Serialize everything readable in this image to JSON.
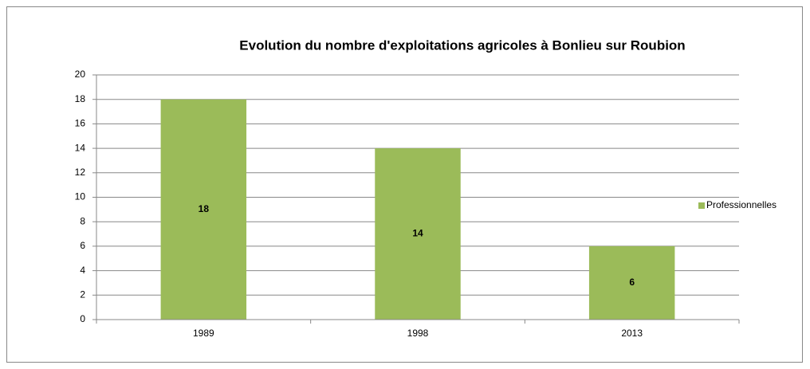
{
  "chart_data": {
    "type": "bar",
    "title": "Evolution du nombre d'exploitations agricoles à Bonlieu sur Roubion",
    "categories": [
      "1989",
      "1998",
      "2013"
    ],
    "series": [
      {
        "name": "Professionnelles",
        "color": "#9bbb59",
        "values": [
          18,
          14,
          6
        ]
      }
    ],
    "ylim": [
      0,
      20
    ],
    "yticks": [
      0,
      2,
      4,
      6,
      8,
      10,
      12,
      14,
      16,
      18,
      20
    ],
    "grid": true,
    "data_labels": true,
    "legend": "right"
  }
}
